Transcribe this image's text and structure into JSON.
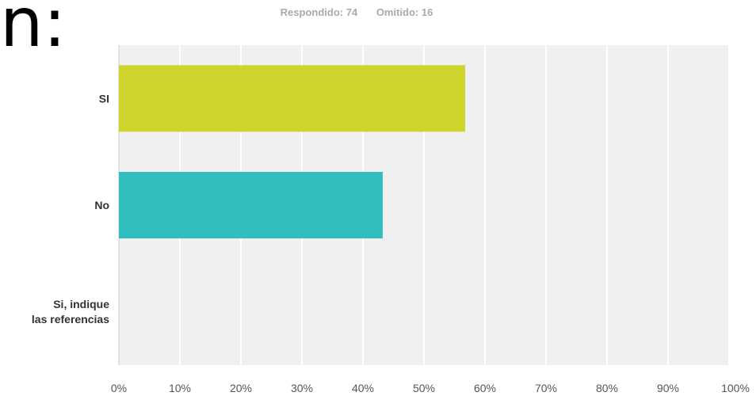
{
  "page": {
    "corner_text": "n:"
  },
  "header": {
    "answered": "Respondido: 74",
    "skipped": "Omitido: 16"
  },
  "chart_data": {
    "type": "bar",
    "orientation": "horizontal",
    "categories": [
      "SI",
      "No",
      "Si, indique las referencias"
    ],
    "category_lines": [
      [
        "SI"
      ],
      [
        "No"
      ],
      [
        "Si, indique",
        "las referencias"
      ]
    ],
    "values": [
      56.76,
      43.24,
      0
    ],
    "colors": [
      "#cdd42b",
      "#32bdbf",
      "#999999"
    ],
    "xlim": [
      0,
      100
    ],
    "xticks": [
      "0%",
      "10%",
      "20%",
      "30%",
      "40%",
      "50%",
      "60%",
      "70%",
      "80%",
      "90%",
      "100%"
    ],
    "grid": true,
    "background": "#f0f0f0",
    "title": "",
    "xlabel": "",
    "ylabel": ""
  }
}
